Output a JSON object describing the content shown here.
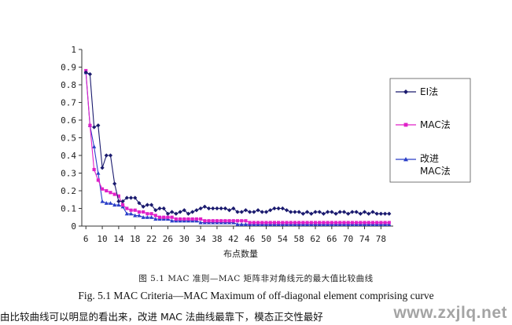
{
  "chart_data": {
    "type": "line",
    "title": "",
    "xlabel": "布点数量",
    "ylabel": "",
    "xlim": [
      5,
      81
    ],
    "ylim": [
      0,
      1
    ],
    "x_ticks": [
      6,
      10,
      14,
      18,
      22,
      26,
      30,
      34,
      38,
      42,
      46,
      50,
      54,
      58,
      62,
      66,
      70,
      74,
      78
    ],
    "y_ticks": [
      0,
      0.1,
      0.2,
      0.3,
      0.4,
      0.5,
      0.6,
      0.7,
      0.8,
      0.9,
      1
    ],
    "grid": false,
    "legend_position": "right",
    "x": [
      6,
      7,
      8,
      9,
      10,
      11,
      12,
      13,
      14,
      15,
      16,
      17,
      18,
      19,
      20,
      21,
      22,
      23,
      24,
      25,
      26,
      27,
      28,
      29,
      30,
      31,
      32,
      33,
      34,
      35,
      36,
      37,
      38,
      39,
      40,
      41,
      42,
      43,
      44,
      45,
      46,
      47,
      48,
      49,
      50,
      51,
      52,
      53,
      54,
      55,
      56,
      57,
      58,
      59,
      60,
      61,
      62,
      63,
      64,
      65,
      66,
      67,
      68,
      69,
      70,
      71,
      72,
      73,
      74,
      75,
      76,
      77,
      78,
      79,
      80
    ],
    "series": [
      {
        "name": "EI法",
        "color": "#1a1a6e",
        "marker": "diamond",
        "values": [
          0.87,
          0.86,
          0.56,
          0.57,
          0.33,
          0.4,
          0.4,
          0.24,
          0.14,
          0.14,
          0.16,
          0.16,
          0.16,
          0.13,
          0.11,
          0.12,
          0.12,
          0.09,
          0.1,
          0.1,
          0.07,
          0.08,
          0.07,
          0.08,
          0.09,
          0.07,
          0.08,
          0.09,
          0.1,
          0.11,
          0.1,
          0.1,
          0.1,
          0.1,
          0.1,
          0.09,
          0.1,
          0.08,
          0.08,
          0.09,
          0.08,
          0.08,
          0.09,
          0.08,
          0.08,
          0.09,
          0.1,
          0.1,
          0.1,
          0.09,
          0.08,
          0.08,
          0.08,
          0.07,
          0.08,
          0.07,
          0.08,
          0.08,
          0.07,
          0.08,
          0.08,
          0.07,
          0.08,
          0.08,
          0.07,
          0.08,
          0.08,
          0.07,
          0.08,
          0.07,
          0.08,
          0.07,
          0.07,
          0.07,
          0.07
        ]
      },
      {
        "name": "MAC法",
        "color": "#e020c8",
        "marker": "square",
        "values": [
          0.88,
          0.57,
          0.32,
          0.26,
          0.21,
          0.2,
          0.19,
          0.18,
          0.17,
          0.12,
          0.1,
          0.09,
          0.09,
          0.08,
          0.08,
          0.07,
          0.07,
          0.06,
          0.05,
          0.05,
          0.05,
          0.05,
          0.04,
          0.04,
          0.04,
          0.04,
          0.04,
          0.04,
          0.04,
          0.03,
          0.03,
          0.03,
          0.03,
          0.03,
          0.03,
          0.03,
          0.03,
          0.03,
          0.03,
          0.03,
          0.02,
          0.02,
          0.02,
          0.02,
          0.02,
          0.02,
          0.02,
          0.02,
          0.02,
          0.02,
          0.02,
          0.02,
          0.02,
          0.02,
          0.02,
          0.02,
          0.02,
          0.02,
          0.02,
          0.02,
          0.02,
          0.02,
          0.02,
          0.02,
          0.02,
          0.02,
          0.02,
          0.02,
          0.02,
          0.02,
          0.02,
          0.02,
          0.02,
          0.02,
          0.02
        ]
      },
      {
        "name": "改进MAC法",
        "color": "#2a3fc8",
        "marker": "triangle",
        "values": [
          0.87,
          0.57,
          0.45,
          0.3,
          0.14,
          0.13,
          0.13,
          0.12,
          0.12,
          0.11,
          0.07,
          0.07,
          0.06,
          0.06,
          0.05,
          0.05,
          0.05,
          0.04,
          0.04,
          0.04,
          0.04,
          0.03,
          0.03,
          0.03,
          0.03,
          0.03,
          0.03,
          0.03,
          0.02,
          0.02,
          0.02,
          0.02,
          0.02,
          0.02,
          0.02,
          0.02,
          0.02,
          0.01,
          0.01,
          0.01,
          0.01,
          0.01,
          0.01,
          0.01,
          0.01,
          0.01,
          0.01,
          0.01,
          0.01,
          0.01,
          0.01,
          0.01,
          0.01,
          0.01,
          0.01,
          0.01,
          0.01,
          0.01,
          0.01,
          0.01,
          0.01,
          0.01,
          0.01,
          0.01,
          0.01,
          0.01,
          0.01,
          0.01,
          0.01,
          0.01,
          0.01,
          0.01,
          0.01,
          0.01,
          0.01
        ]
      }
    ]
  },
  "legend": {
    "items": [
      "EI法",
      "MAC法",
      "改进",
      "MAC法"
    ]
  },
  "caption": {
    "cn": "图 5.1 MAC 准则—MAC 矩阵非对角线元的最大值比较曲线",
    "en": "Fig. 5.1 MAC Criteria—MAC Maximum of off-diagonal element comprising curve"
  },
  "body_text": "由比较曲线可以明显的看出来，改进 MAC 法曲线最靠下，模态正交性最好",
  "watermark": "www.zxjlq.net"
}
